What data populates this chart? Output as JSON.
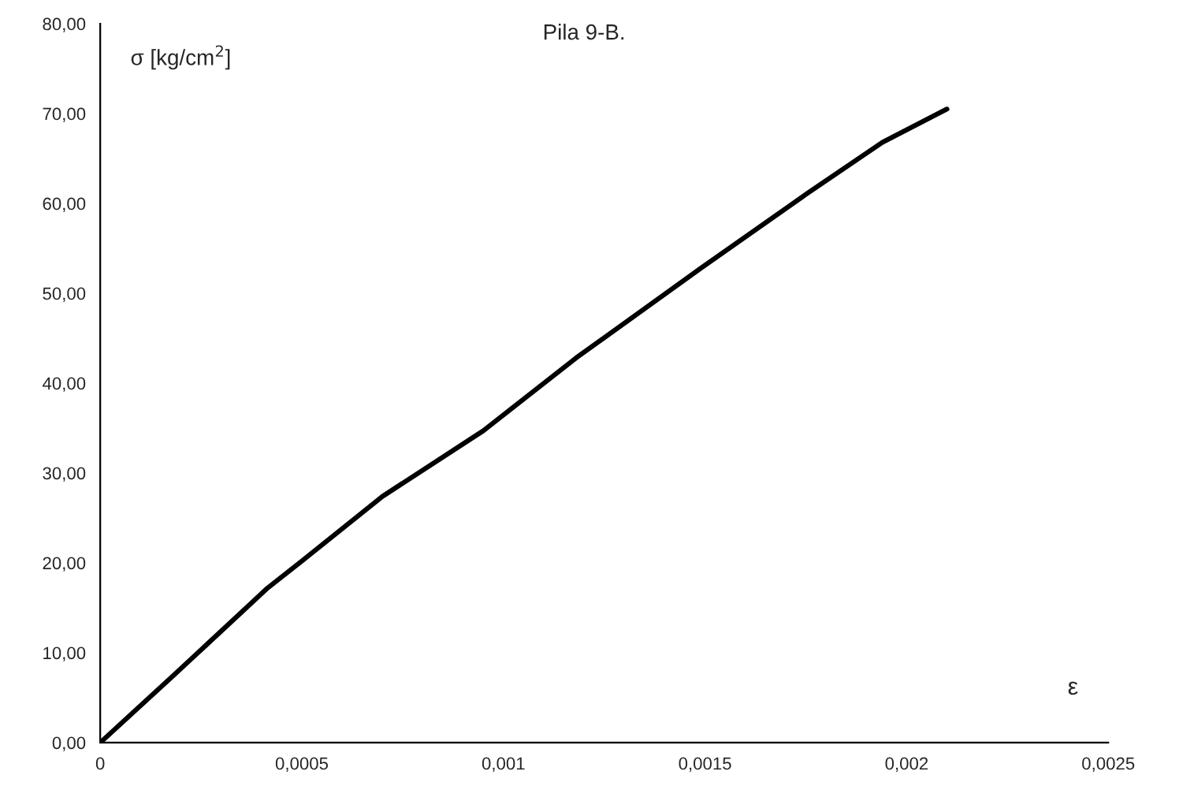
{
  "chart_data": {
    "type": "line",
    "title": "Pila 9-B.",
    "xlabel": "ε",
    "ylabel": "σ [kg/cm$^{2}$]",
    "x": [
      0,
      0.00018,
      0.000415,
      0.0005,
      0.0007,
      0.00095,
      0.00118,
      0.00149,
      0.00175,
      0.00194,
      0.0021
    ],
    "series": [
      {
        "color": "#000000",
        "values": [
          0,
          7.4,
          17.2,
          20.2,
          27.4,
          34.7,
          42.8,
          52.8,
          61,
          66.8,
          70.5
        ]
      }
    ],
    "xlim": [
      0,
      0.0025
    ],
    "ylim": [
      0,
      80
    ],
    "xticks": [
      {
        "value": 0,
        "label": "0"
      },
      {
        "value": 0.0005,
        "label": "0,0005"
      },
      {
        "value": 0.001,
        "label": "0,001"
      },
      {
        "value": 0.0015,
        "label": "0,0015"
      },
      {
        "value": 0.002,
        "label": "0,002"
      },
      {
        "value": 0.0025,
        "label": "0,0025"
      }
    ],
    "yticks": [
      {
        "value": 0,
        "label": "0,00"
      },
      {
        "value": 10,
        "label": "10,00"
      },
      {
        "value": 20,
        "label": "20,00"
      },
      {
        "value": 30,
        "label": "30,00"
      },
      {
        "value": 40,
        "label": "40,00"
      },
      {
        "value": 50,
        "label": "50,00"
      },
      {
        "value": 60,
        "label": "60,00"
      },
      {
        "value": 70,
        "label": "70,00"
      },
      {
        "value": 80,
        "label": "80,00"
      }
    ],
    "grid": false,
    "legend": false,
    "marker": "none",
    "line_style": "solid"
  }
}
